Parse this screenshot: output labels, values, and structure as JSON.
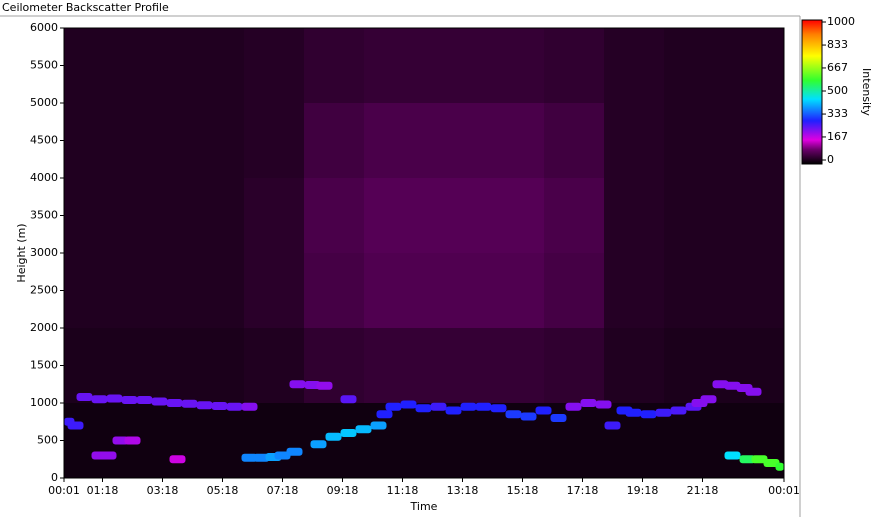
{
  "chart_data": {
    "type": "heatmap",
    "title": "Ceilometer Backscatter Profile",
    "xlabel": "Time",
    "ylabel": "Height (m)",
    "colorbar_label": "Intensity",
    "xlim": [
      0.0167,
      24.0167
    ],
    "xticks": [
      {
        "value": 0.0167,
        "label": "00:01"
      },
      {
        "value": 1.3,
        "label": "01:18"
      },
      {
        "value": 3.3,
        "label": "03:18"
      },
      {
        "value": 5.3,
        "label": "05:18"
      },
      {
        "value": 7.3,
        "label": "07:18"
      },
      {
        "value": 9.3,
        "label": "09:18"
      },
      {
        "value": 11.3,
        "label": "11:18"
      },
      {
        "value": 13.3,
        "label": "13:18"
      },
      {
        "value": 15.3,
        "label": "15:18"
      },
      {
        "value": 17.3,
        "label": "17:18"
      },
      {
        "value": 19.3,
        "label": "19:18"
      },
      {
        "value": 21.3,
        "label": "21:18"
      },
      {
        "value": 24.0167,
        "label": "00:01"
      }
    ],
    "ylim": [
      0,
      6000
    ],
    "yticks": [
      0,
      500,
      1000,
      1500,
      2000,
      2500,
      3000,
      3500,
      4000,
      4500,
      5000,
      5500,
      6000
    ],
    "clim": [
      0,
      1000
    ],
    "cticks": [
      0,
      167,
      333,
      500,
      667,
      833,
      1000
    ],
    "colormap": [
      {
        "value": 0,
        "color": "#000000"
      },
      {
        "value": 100,
        "color": "#6a006a"
      },
      {
        "value": 167,
        "color": "#e000e0"
      },
      {
        "value": 300,
        "color": "#2020ff"
      },
      {
        "value": 450,
        "color": "#00e0ff"
      },
      {
        "value": 580,
        "color": "#30ff30"
      },
      {
        "value": 750,
        "color": "#ffff00"
      },
      {
        "value": 900,
        "color": "#ff8000"
      },
      {
        "value": 1000,
        "color": "#ff0000"
      }
    ],
    "background": {
      "x_edges": [
        0.0167,
        2.0167,
        4.0167,
        6.0167,
        8.0167,
        10.0167,
        12.0167,
        14.0167,
        16.0167,
        18.0167,
        20.0167,
        22.0167,
        24.0167
      ],
      "y_edges": [
        0,
        1000,
        2000,
        3000,
        4000,
        5000,
        6000
      ],
      "values": [
        [
          15,
          15,
          15,
          15,
          15,
          15,
          15,
          15,
          15,
          15,
          15,
          15
        ],
        [
          25,
          25,
          25,
          30,
          45,
          50,
          50,
          50,
          45,
          30,
          25,
          25
        ],
        [
          30,
          30,
          30,
          40,
          65,
          75,
          75,
          75,
          65,
          35,
          30,
          30
        ],
        [
          30,
          30,
          30,
          40,
          70,
          80,
          80,
          80,
          70,
          35,
          30,
          30
        ],
        [
          30,
          30,
          30,
          35,
          60,
          70,
          70,
          70,
          60,
          35,
          30,
          30
        ],
        [
          30,
          30,
          30,
          35,
          45,
          50,
          50,
          50,
          45,
          35,
          30,
          30
        ]
      ]
    },
    "layers": {
      "x": [
        0.1,
        0.4,
        0.7,
        1.2,
        1.7,
        2.2,
        2.7,
        3.2,
        3.7,
        4.2,
        4.7,
        5.2,
        5.7,
        6.2,
        1.2,
        1.5,
        1.9,
        2.3,
        3.8,
        6.2,
        6.6,
        7.0,
        7.3,
        7.7,
        8.5,
        9.0,
        9.5,
        10.0,
        10.5,
        7.8,
        8.3,
        8.7,
        9.5,
        10.7,
        11.0,
        11.5,
        12.0,
        12.5,
        13.0,
        13.5,
        14.0,
        14.5,
        15.0,
        15.5,
        16.0,
        16.5,
        17.0,
        17.5,
        18.0,
        18.3,
        18.7,
        19.0,
        19.5,
        20.0,
        20.5,
        21.0,
        21.2,
        21.5,
        21.9,
        22.3,
        22.7,
        23.0,
        22.3,
        22.8,
        23.2,
        23.6,
        24.0
      ],
      "y": [
        750,
        700,
        1080,
        1050,
        1060,
        1040,
        1040,
        1020,
        1000,
        990,
        970,
        960,
        950,
        950,
        300,
        300,
        500,
        500,
        250,
        270,
        270,
        280,
        300,
        350,
        450,
        550,
        600,
        650,
        700,
        1250,
        1240,
        1230,
        1050,
        850,
        950,
        980,
        930,
        950,
        900,
        950,
        950,
        930,
        850,
        820,
        900,
        800,
        950,
        1000,
        980,
        700,
        900,
        870,
        850,
        870,
        900,
        950,
        1000,
        1050,
        1250,
        1230,
        1200,
        1150,
        300,
        250,
        250,
        200,
        150
      ],
      "intensity": [
        280,
        280,
        250,
        250,
        250,
        250,
        250,
        250,
        250,
        250,
        250,
        250,
        250,
        230,
        220,
        220,
        220,
        200,
        180,
        380,
        380,
        400,
        380,
        380,
        400,
        420,
        430,
        420,
        400,
        230,
        230,
        220,
        260,
        300,
        300,
        300,
        300,
        280,
        300,
        300,
        300,
        300,
        320,
        320,
        300,
        320,
        230,
        230,
        230,
        280,
        300,
        300,
        300,
        280,
        270,
        260,
        230,
        230,
        230,
        230,
        230,
        230,
        450,
        550,
        600,
        600,
        580
      ]
    }
  }
}
